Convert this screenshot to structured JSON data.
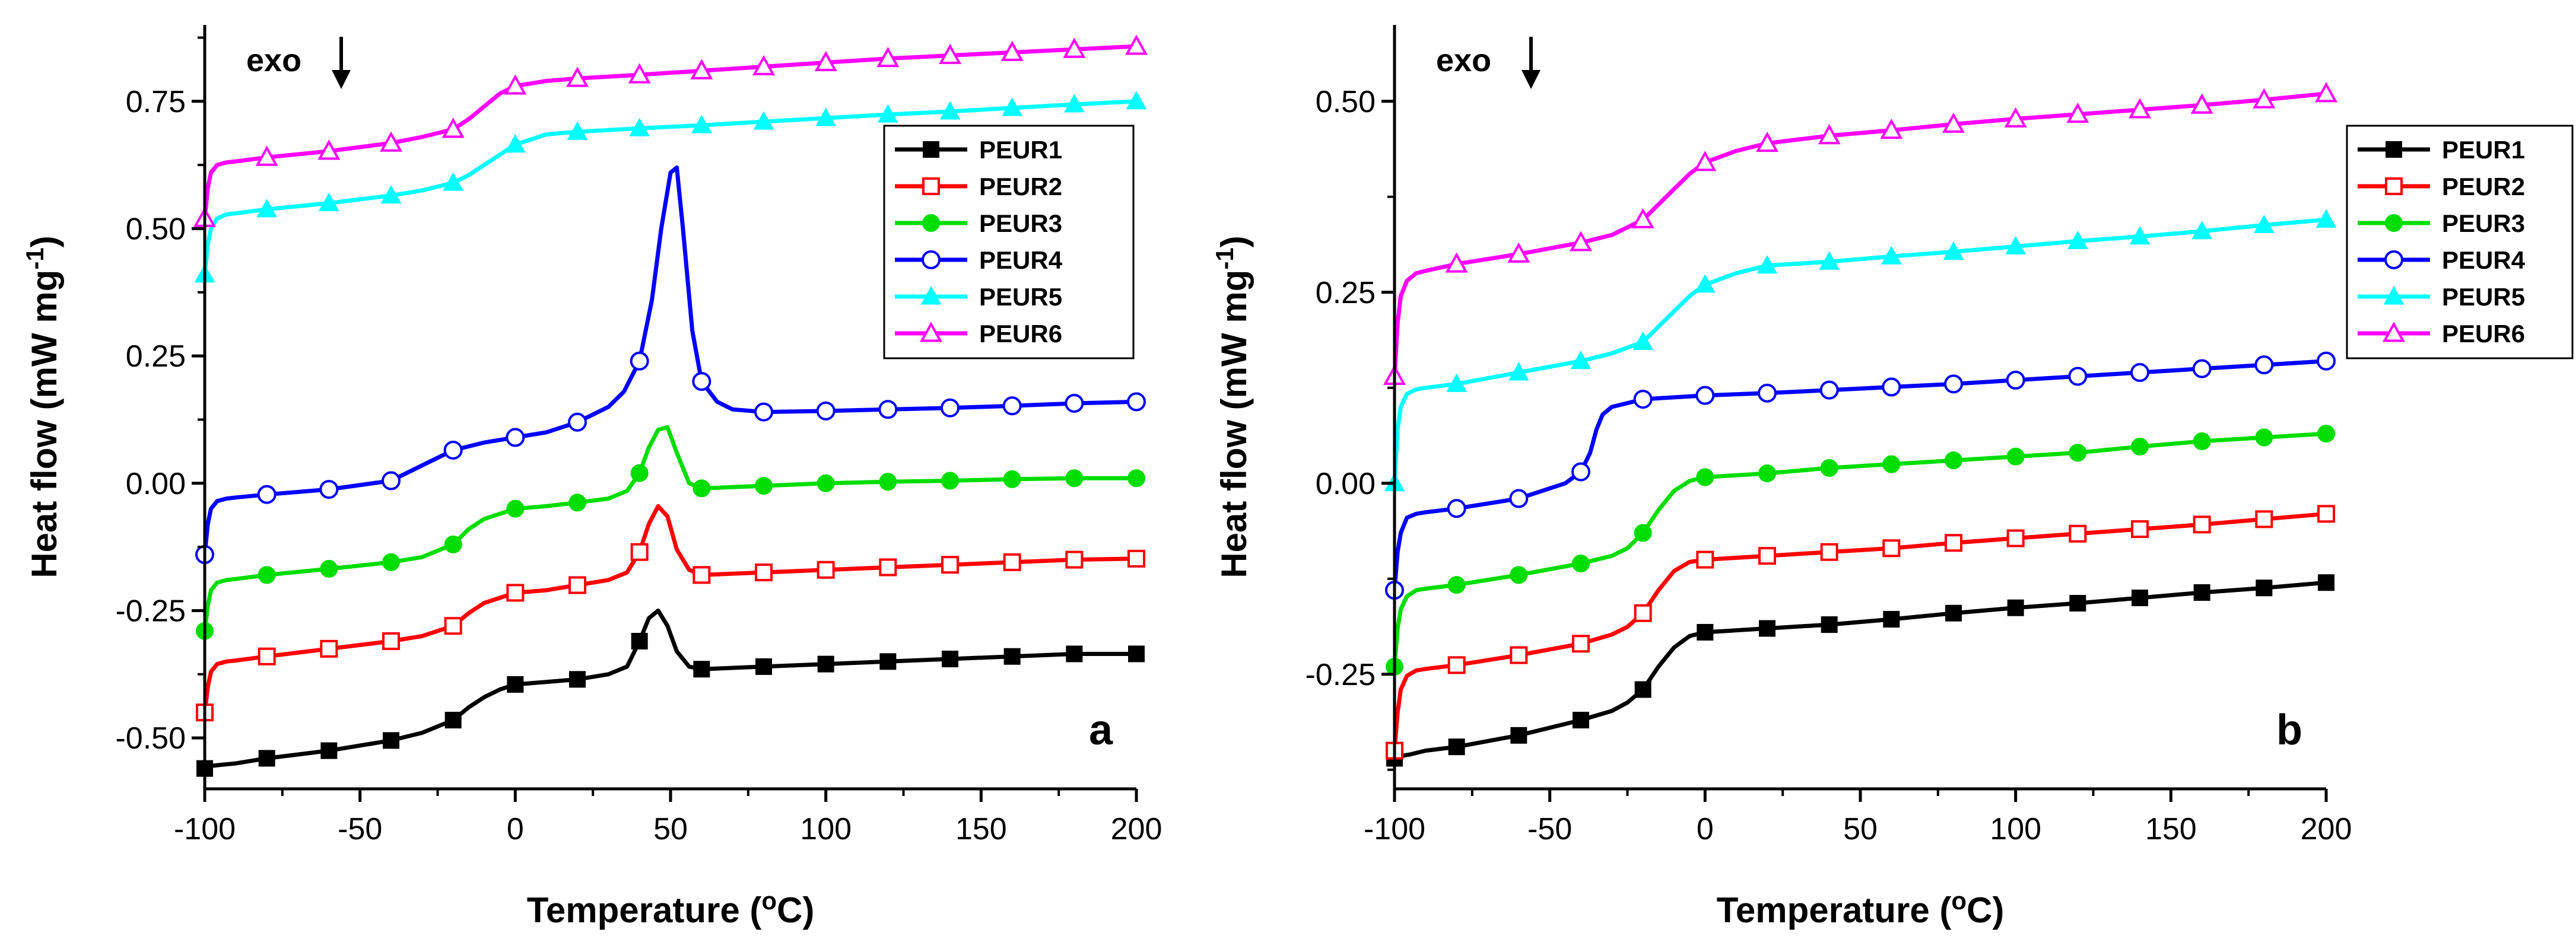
{
  "chart_data": [
    {
      "type": "line",
      "panel_label": "a",
      "annotation": "exo",
      "xlabel": "Temperature (",
      "xlabel_sup": "o",
      "xlabel_end": "C)",
      "ylabel": "Heat flow (mW mg",
      "ylabel_sup": "-1",
      "ylabel_end": ")",
      "xlim": [
        -100,
        200
      ],
      "ylim": [
        -0.6,
        0.9
      ],
      "xticks": [
        -100,
        -50,
        0,
        50,
        100,
        150,
        200
      ],
      "xtick_labels": [
        "-100",
        "-50",
        "0",
        "50",
        "100",
        "150",
        "200"
      ],
      "yticks": [
        -0.5,
        -0.25,
        0,
        0.25,
        0.5,
        0.75
      ],
      "ytick_labels": [
        "-0.50",
        "-0.25",
        "0.00",
        "0.25",
        "0.50",
        "0.75"
      ],
      "legend_position": "top-right",
      "series": [
        {
          "name": "PEUR1",
          "color": "#000000",
          "marker": "filled-square",
          "x": [
            -100,
            -98,
            -95,
            -90,
            -80,
            -60,
            -40,
            -30,
            -20,
            -15,
            -10,
            -5,
            0,
            10,
            20,
            30,
            36,
            40,
            43,
            46,
            49,
            52,
            56,
            60,
            80,
            100,
            120,
            140,
            160,
            180,
            200
          ],
          "y": [
            -0.56,
            -0.555,
            -0.553,
            -0.55,
            -0.54,
            -0.525,
            -0.505,
            -0.49,
            -0.465,
            -0.44,
            -0.42,
            -0.405,
            -0.395,
            -0.39,
            -0.385,
            -0.375,
            -0.36,
            -0.31,
            -0.265,
            -0.25,
            -0.28,
            -0.33,
            -0.36,
            -0.365,
            -0.36,
            -0.355,
            -0.35,
            -0.345,
            -0.34,
            -0.335,
            -0.335
          ]
        },
        {
          "name": "PEUR2",
          "color": "#ff0000",
          "marker": "open-square",
          "x": [
            -100,
            -99,
            -98,
            -96,
            -93,
            -90,
            -80,
            -60,
            -40,
            -30,
            -20,
            -15,
            -10,
            -5,
            0,
            10,
            20,
            30,
            36,
            40,
            43,
            46,
            49,
            52,
            56,
            60,
            80,
            100,
            120,
            140,
            160,
            180,
            200
          ],
          "y": [
            -0.45,
            -0.4,
            -0.37,
            -0.355,
            -0.35,
            -0.348,
            -0.34,
            -0.325,
            -0.31,
            -0.3,
            -0.28,
            -0.255,
            -0.235,
            -0.225,
            -0.215,
            -0.21,
            -0.2,
            -0.19,
            -0.175,
            -0.135,
            -0.08,
            -0.045,
            -0.065,
            -0.13,
            -0.17,
            -0.18,
            -0.175,
            -0.17,
            -0.165,
            -0.16,
            -0.155,
            -0.15,
            -0.148
          ]
        },
        {
          "name": "PEUR3",
          "color": "#00dd00",
          "marker": "filled-circle",
          "x": [
            -100,
            -99,
            -98,
            -96,
            -93,
            -90,
            -80,
            -60,
            -40,
            -30,
            -20,
            -15,
            -10,
            -5,
            0,
            10,
            20,
            30,
            36,
            40,
            43,
            46,
            49,
            52,
            56,
            60,
            80,
            100,
            120,
            140,
            160,
            180,
            200
          ],
          "y": [
            -0.29,
            -0.24,
            -0.21,
            -0.195,
            -0.19,
            -0.188,
            -0.18,
            -0.168,
            -0.155,
            -0.145,
            -0.12,
            -0.09,
            -0.07,
            -0.06,
            -0.05,
            -0.045,
            -0.038,
            -0.03,
            -0.015,
            0.02,
            0.07,
            0.105,
            0.11,
            0.06,
            0.0,
            -0.01,
            -0.005,
            0.0,
            0.003,
            0.005,
            0.008,
            0.01,
            0.01
          ]
        },
        {
          "name": "PEUR4",
          "color": "#0000ff",
          "marker": "open-circle",
          "x": [
            -100,
            -99,
            -98,
            -96,
            -93,
            -90,
            -80,
            -60,
            -40,
            -30,
            -20,
            -10,
            0,
            10,
            20,
            30,
            35,
            40,
            44,
            47,
            50,
            52,
            54,
            57,
            60,
            65,
            70,
            80,
            100,
            120,
            140,
            160,
            180,
            200
          ],
          "y": [
            -0.14,
            -0.08,
            -0.05,
            -0.035,
            -0.03,
            -0.028,
            -0.022,
            -0.012,
            0.005,
            0.035,
            0.065,
            0.08,
            0.09,
            0.1,
            0.12,
            0.15,
            0.18,
            0.24,
            0.36,
            0.5,
            0.61,
            0.62,
            0.5,
            0.3,
            0.2,
            0.16,
            0.145,
            0.14,
            0.142,
            0.145,
            0.148,
            0.152,
            0.157,
            0.16
          ]
        },
        {
          "name": "PEUR5",
          "color": "#00ffff",
          "marker": "filled-triangle",
          "x": [
            -100,
            -99,
            -98,
            -96,
            -93,
            -90,
            -80,
            -60,
            -40,
            -30,
            -20,
            -15,
            -10,
            -5,
            0,
            10,
            20,
            40,
            60,
            80,
            100,
            120,
            140,
            160,
            180,
            200
          ],
          "y": [
            0.41,
            0.47,
            0.5,
            0.52,
            0.528,
            0.53,
            0.538,
            0.55,
            0.565,
            0.575,
            0.59,
            0.605,
            0.625,
            0.645,
            0.665,
            0.685,
            0.69,
            0.697,
            0.703,
            0.71,
            0.717,
            0.724,
            0.73,
            0.737,
            0.744,
            0.75
          ]
        },
        {
          "name": "PEUR6",
          "color": "#ff00ff",
          "marker": "open-triangle",
          "x": [
            -100,
            -99,
            -98,
            -96,
            -93,
            -90,
            -80,
            -60,
            -40,
            -30,
            -20,
            -15,
            -10,
            -5,
            0,
            10,
            20,
            40,
            60,
            80,
            100,
            120,
            140,
            160,
            180,
            200
          ],
          "y": [
            0.52,
            0.58,
            0.61,
            0.625,
            0.63,
            0.632,
            0.64,
            0.652,
            0.668,
            0.68,
            0.695,
            0.715,
            0.74,
            0.765,
            0.78,
            0.79,
            0.795,
            0.802,
            0.81,
            0.818,
            0.826,
            0.834,
            0.84,
            0.846,
            0.852,
            0.858
          ]
        }
      ]
    },
    {
      "type": "line",
      "panel_label": "b",
      "annotation": "exo",
      "xlabel": "Temperature (",
      "xlabel_sup": "o",
      "xlabel_end": "C)",
      "ylabel": "Heat flow (mW mg",
      "ylabel_sup": "-1",
      "ylabel_end": ")",
      "xlim": [
        -100,
        200
      ],
      "ylim": [
        -0.4,
        0.6
      ],
      "xticks": [
        -100,
        -50,
        0,
        50,
        100,
        150,
        200
      ],
      "xtick_labels": [
        "-100",
        "-50",
        "0",
        "50",
        "100",
        "150",
        "200"
      ],
      "yticks": [
        -0.25,
        0,
        0.25,
        0.5
      ],
      "ytick_labels": [
        "-0.25",
        "0.00",
        "0.25",
        "0.50"
      ],
      "legend_position": "right",
      "series": [
        {
          "name": "PEUR1",
          "color": "#000000",
          "marker": "filled-square",
          "x": [
            -100,
            -98,
            -95,
            -90,
            -80,
            -60,
            -40,
            -30,
            -25,
            -20,
            -15,
            -10,
            -5,
            0,
            20,
            40,
            60,
            80,
            100,
            120,
            140,
            160,
            180,
            200
          ],
          "y": [
            -0.36,
            -0.357,
            -0.355,
            -0.35,
            -0.345,
            -0.33,
            -0.31,
            -0.298,
            -0.287,
            -0.27,
            -0.24,
            -0.215,
            -0.2,
            -0.195,
            -0.19,
            -0.185,
            -0.178,
            -0.17,
            -0.163,
            -0.157,
            -0.15,
            -0.143,
            -0.137,
            -0.13
          ]
        },
        {
          "name": "PEUR2",
          "color": "#ff0000",
          "marker": "open-square",
          "x": [
            -100,
            -99,
            -98,
            -96,
            -93,
            -90,
            -80,
            -60,
            -40,
            -30,
            -25,
            -20,
            -15,
            -10,
            -5,
            0,
            20,
            40,
            60,
            80,
            100,
            120,
            140,
            160,
            180,
            200
          ],
          "y": [
            -0.35,
            -0.3,
            -0.27,
            -0.252,
            -0.245,
            -0.243,
            -0.238,
            -0.225,
            -0.21,
            -0.198,
            -0.188,
            -0.17,
            -0.14,
            -0.115,
            -0.103,
            -0.1,
            -0.095,
            -0.09,
            -0.085,
            -0.078,
            -0.072,
            -0.066,
            -0.06,
            -0.054,
            -0.047,
            -0.04
          ]
        },
        {
          "name": "PEUR3",
          "color": "#00dd00",
          "marker": "filled-circle",
          "x": [
            -100,
            -99,
            -98,
            -96,
            -93,
            -90,
            -80,
            -60,
            -40,
            -30,
            -25,
            -20,
            -15,
            -10,
            -5,
            0,
            20,
            40,
            60,
            80,
            100,
            120,
            140,
            160,
            180,
            200
          ],
          "y": [
            -0.24,
            -0.19,
            -0.165,
            -0.148,
            -0.14,
            -0.138,
            -0.133,
            -0.12,
            -0.105,
            -0.095,
            -0.085,
            -0.065,
            -0.035,
            -0.01,
            0.003,
            0.008,
            0.013,
            0.02,
            0.025,
            0.03,
            0.035,
            0.04,
            0.048,
            0.055,
            0.06,
            0.065
          ]
        },
        {
          "name": "PEUR4",
          "color": "#0000ff",
          "marker": "open-circle",
          "x": [
            -100,
            -99,
            -98,
            -96,
            -93,
            -90,
            -80,
            -60,
            -45,
            -40,
            -37,
            -35,
            -33,
            -30,
            -25,
            -20,
            0,
            20,
            40,
            60,
            80,
            100,
            120,
            140,
            160,
            180,
            200
          ],
          "y": [
            -0.14,
            -0.09,
            -0.065,
            -0.045,
            -0.04,
            -0.038,
            -0.033,
            -0.02,
            0.0,
            0.015,
            0.04,
            0.07,
            0.09,
            0.1,
            0.105,
            0.11,
            0.115,
            0.118,
            0.122,
            0.126,
            0.13,
            0.135,
            0.14,
            0.145,
            0.15,
            0.155,
            0.16
          ]
        },
        {
          "name": "PEUR5",
          "color": "#00ffff",
          "marker": "filled-triangle",
          "x": [
            -100,
            -99,
            -98,
            -96,
            -93,
            -90,
            -80,
            -60,
            -40,
            -30,
            -20,
            -15,
            -10,
            -5,
            0,
            10,
            20,
            40,
            60,
            80,
            100,
            120,
            140,
            160,
            180,
            200
          ],
          "y": [
            0.0,
            0.07,
            0.1,
            0.117,
            0.123,
            0.125,
            0.13,
            0.145,
            0.16,
            0.17,
            0.185,
            0.205,
            0.225,
            0.245,
            0.26,
            0.275,
            0.285,
            0.29,
            0.297,
            0.303,
            0.31,
            0.317,
            0.323,
            0.33,
            0.338,
            0.345
          ]
        },
        {
          "name": "PEUR6",
          "color": "#ff00ff",
          "marker": "open-triangle",
          "x": [
            -100,
            -99,
            -98,
            -96,
            -93,
            -90,
            -80,
            -60,
            -40,
            -30,
            -20,
            -15,
            -10,
            -5,
            0,
            10,
            20,
            40,
            60,
            80,
            100,
            120,
            140,
            160,
            180,
            200
          ],
          "y": [
            0.14,
            0.21,
            0.245,
            0.265,
            0.275,
            0.278,
            0.287,
            0.3,
            0.315,
            0.325,
            0.345,
            0.365,
            0.385,
            0.405,
            0.42,
            0.435,
            0.445,
            0.455,
            0.462,
            0.47,
            0.477,
            0.483,
            0.489,
            0.495,
            0.502,
            0.51
          ]
        }
      ]
    }
  ]
}
